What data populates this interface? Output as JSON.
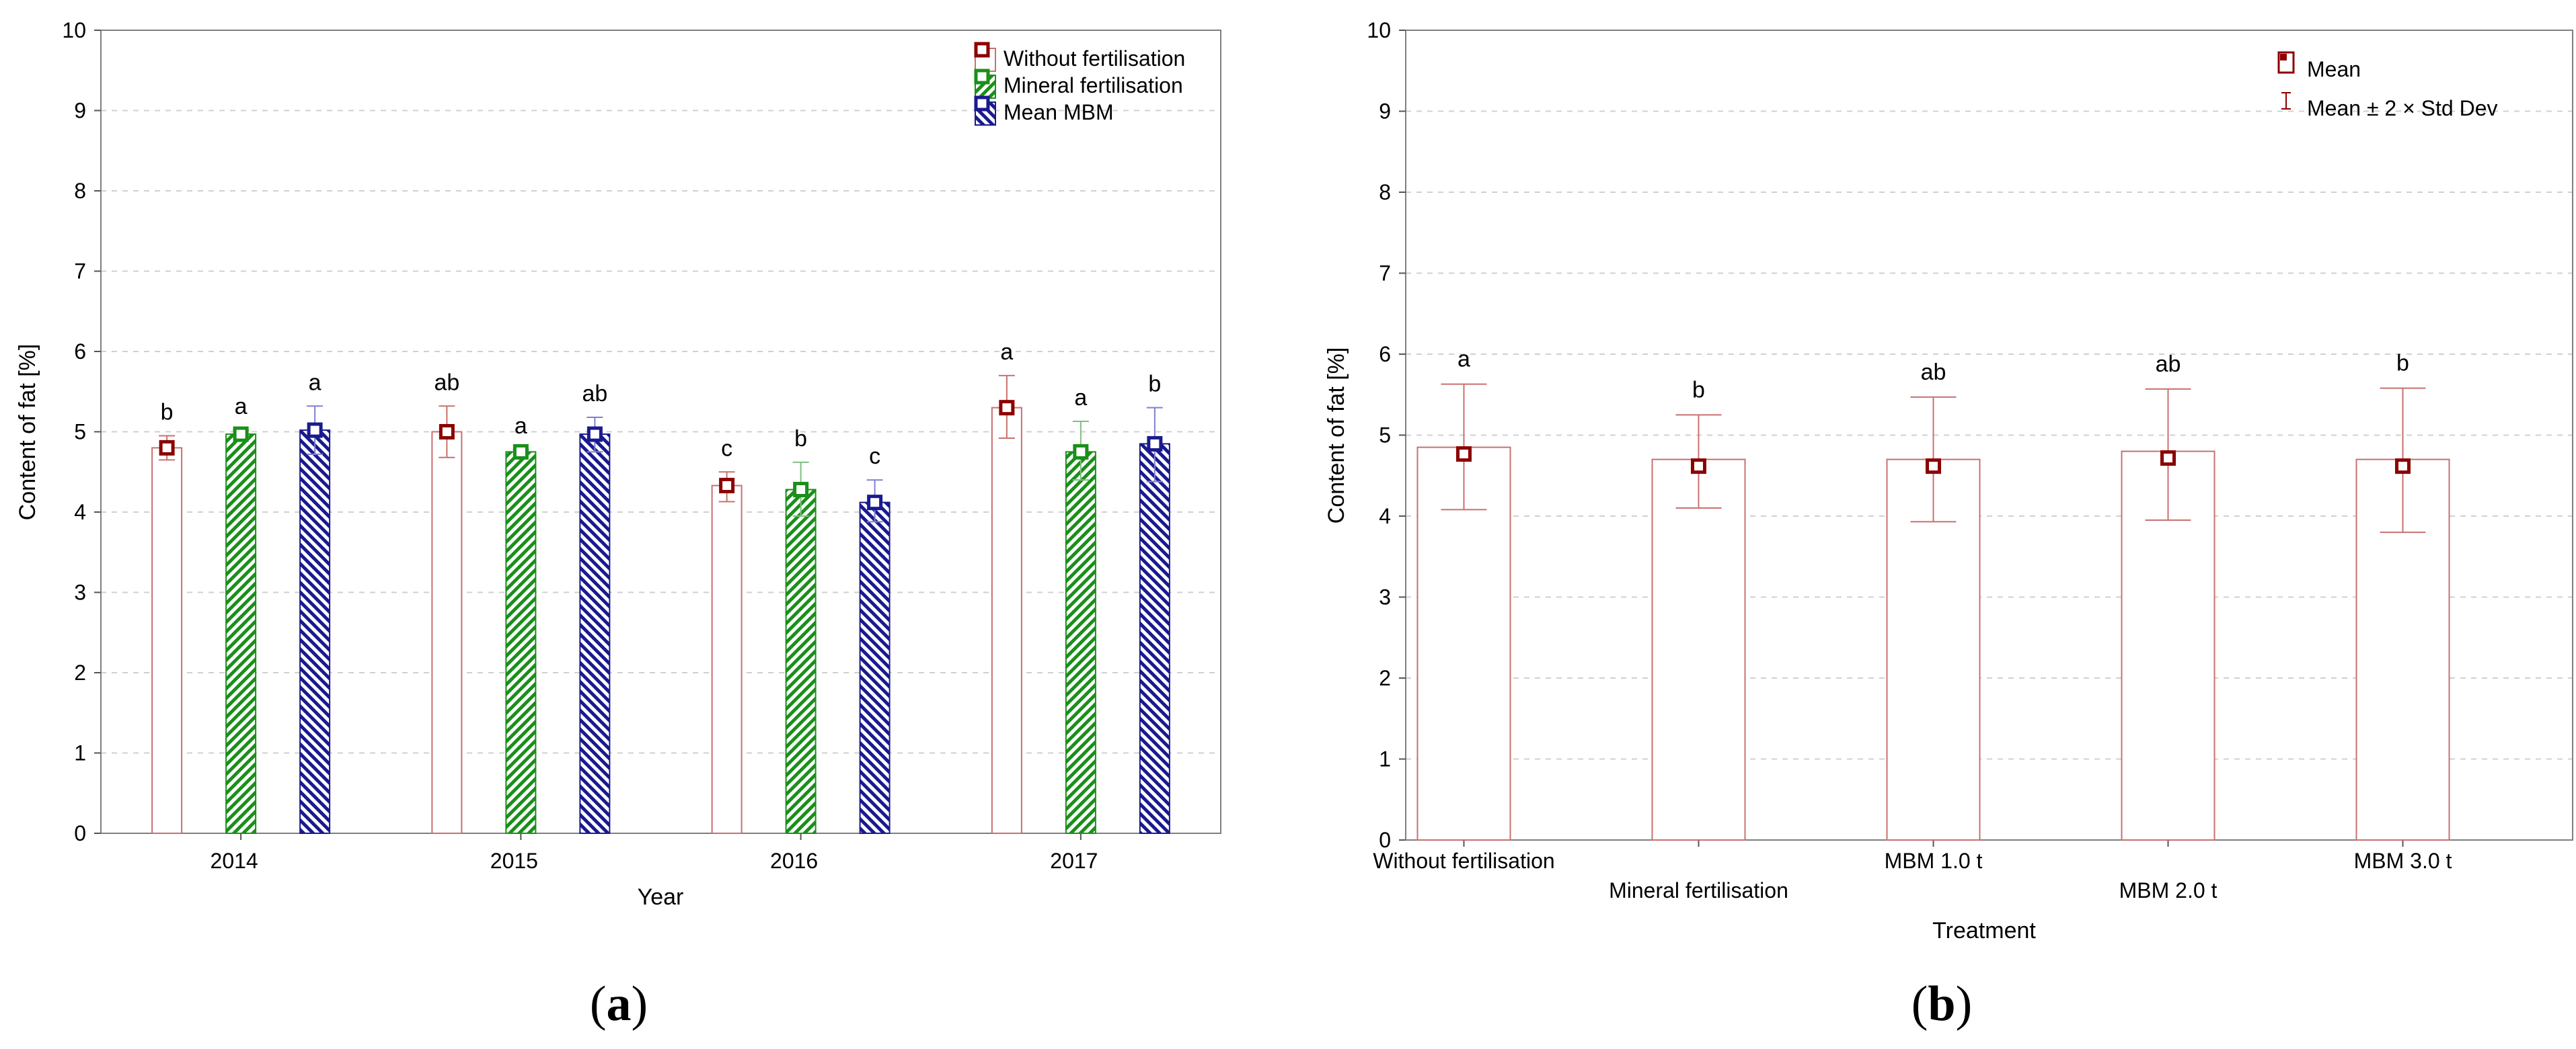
{
  "chart_data": [
    {
      "panel": "(a)",
      "panel_letter": "a",
      "type": "bar",
      "xlabel": "Year",
      "ylabel": "Content of fat [%]",
      "ylim": [
        0,
        10
      ],
      "yticks": [
        0,
        1,
        2,
        3,
        4,
        5,
        6,
        7,
        8,
        9,
        10
      ],
      "grid": true,
      "legend": "top-right",
      "categories": [
        "2014",
        "2015",
        "2016",
        "2017"
      ],
      "series": [
        {
          "name": "Without fertilisation",
          "color": "#8b0000",
          "fill": "none",
          "values": [
            4.8,
            5.0,
            4.33,
            5.3
          ],
          "err_low": [
            4.65,
            4.68,
            4.13,
            4.92
          ],
          "err_high": [
            4.95,
            5.32,
            4.5,
            5.7
          ],
          "letters": [
            "b",
            "ab",
            "c",
            "a"
          ]
        },
        {
          "name": "Mineral fertilisation",
          "color": "#1a8f1a",
          "fill": "hatch-green",
          "values": [
            4.97,
            4.75,
            4.28,
            4.75
          ],
          "err_low": [
            4.93,
            4.72,
            3.95,
            4.4
          ],
          "err_high": [
            5.02,
            4.78,
            4.62,
            5.13
          ],
          "letters": [
            "a",
            "a",
            "b",
            "a"
          ]
        },
        {
          "name": "Mean MBM",
          "color": "#1a1a8f",
          "fill": "hatch-blue",
          "values": [
            5.02,
            4.97,
            4.12,
            4.85
          ],
          "err_low": [
            4.72,
            4.75,
            3.88,
            4.38
          ],
          "err_high": [
            5.32,
            5.18,
            4.4,
            5.3
          ],
          "letters": [
            "a",
            "ab",
            "c",
            "b"
          ]
        }
      ]
    },
    {
      "panel": "(b)",
      "panel_letter": "b",
      "type": "bar",
      "xlabel": "Treatment",
      "ylabel": "Content of fat [%]",
      "ylim": [
        0,
        10
      ],
      "yticks": [
        0,
        1,
        2,
        3,
        4,
        5,
        6,
        7,
        8,
        9,
        10
      ],
      "grid": true,
      "legend": "top-right",
      "legend_entries": [
        "Mean",
        "Mean ± 2 × Std Dev"
      ],
      "categories": [
        "Without fertilisation",
        "Mineral fertilisation",
        "MBM  1.0 t",
        "MBM  2.0 t",
        "MBM  3.0 t"
      ],
      "series": [
        {
          "name": "Mean",
          "color": "#8b0000",
          "values": [
            4.85,
            4.7,
            4.7,
            4.8,
            4.7
          ],
          "err_low": [
            4.08,
            4.1,
            3.93,
            3.95,
            3.8
          ],
          "err_high": [
            5.63,
            5.25,
            5.47,
            5.57,
            5.58
          ],
          "letters": [
            "a",
            "b",
            "ab",
            "ab",
            "b"
          ]
        }
      ]
    }
  ]
}
